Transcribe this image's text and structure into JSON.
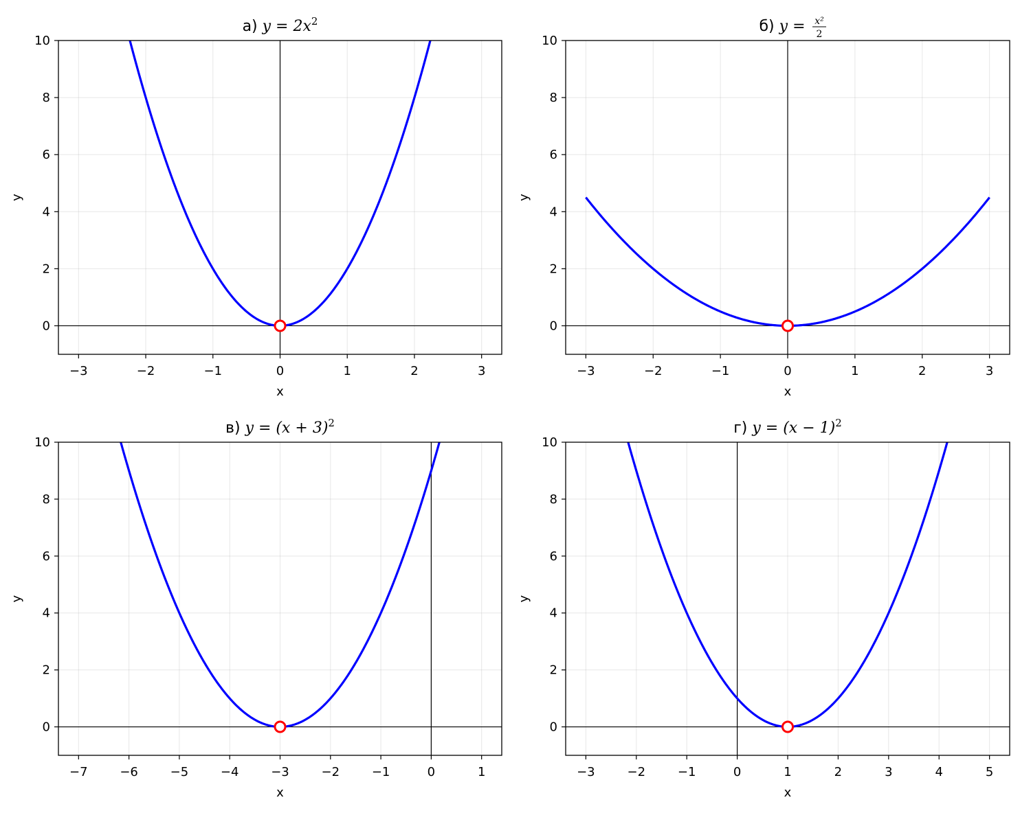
{
  "chart_data": [
    {
      "type": "line",
      "title": {
        "prefix": "а)",
        "formula": "y = 2x",
        "sup": "2"
      },
      "xlabel": "x",
      "ylabel": "y",
      "xlim": [
        -3.3,
        3.3
      ],
      "ylim": [
        -1,
        10
      ],
      "xticks": [
        -3,
        -2,
        -1,
        0,
        1,
        2,
        3
      ],
      "xtick_labels": [
        "−3",
        "−2",
        "−1",
        "0",
        "1",
        "2",
        "3"
      ],
      "yticks": [
        0,
        2,
        4,
        6,
        8,
        10
      ],
      "ytick_labels": [
        "0",
        "2",
        "4",
        "6",
        "8",
        "10"
      ],
      "grid": true,
      "series": [
        {
          "function": "2*x^2",
          "a": 2,
          "h": 0,
          "x_range": [
            -3,
            3
          ],
          "color": "#0000ff"
        }
      ],
      "vertex": [
        0,
        0
      ],
      "vertex_color": "#ff0000"
    },
    {
      "type": "line",
      "title": {
        "prefix": "б)",
        "formula": "y = ",
        "frac_num": "x²",
        "frac_den": "2"
      },
      "xlabel": "x",
      "ylabel": "y",
      "xlim": [
        -3.3,
        3.3
      ],
      "ylim": [
        -1,
        10
      ],
      "xticks": [
        -3,
        -2,
        -1,
        0,
        1,
        2,
        3
      ],
      "xtick_labels": [
        "−3",
        "−2",
        "−1",
        "0",
        "1",
        "2",
        "3"
      ],
      "yticks": [
        0,
        2,
        4,
        6,
        8,
        10
      ],
      "ytick_labels": [
        "0",
        "2",
        "4",
        "6",
        "8",
        "10"
      ],
      "grid": true,
      "series": [
        {
          "function": "x^2/2",
          "a": 0.5,
          "h": 0,
          "x_range": [
            -3,
            3
          ],
          "color": "#0000ff"
        }
      ],
      "vertex": [
        0,
        0
      ],
      "vertex_color": "#ff0000"
    },
    {
      "type": "line",
      "title": {
        "prefix": "в)",
        "formula": "y = (x + 3)",
        "sup": "2"
      },
      "xlabel": "x",
      "ylabel": "y",
      "xlim": [
        -7.4,
        1.4
      ],
      "ylim": [
        -1,
        10
      ],
      "xticks": [
        -7,
        -6,
        -5,
        -4,
        -3,
        -2,
        -1,
        0,
        1
      ],
      "xtick_labels": [
        "−7",
        "−6",
        "−5",
        "−4",
        "−3",
        "−2",
        "−1",
        "0",
        "1"
      ],
      "yticks": [
        0,
        2,
        4,
        6,
        8,
        10
      ],
      "ytick_labels": [
        "0",
        "2",
        "4",
        "6",
        "8",
        "10"
      ],
      "grid": true,
      "series": [
        {
          "function": "(x+3)^2",
          "a": 1,
          "h": -3,
          "x_range": [
            -7,
            1
          ],
          "color": "#0000ff"
        }
      ],
      "vertex": [
        -3,
        0
      ],
      "vertex_color": "#ff0000"
    },
    {
      "type": "line",
      "title": {
        "prefix": "г)",
        "formula": "y = (x − 1)",
        "sup": "2"
      },
      "xlabel": "x",
      "ylabel": "y",
      "xlim": [
        -3.4,
        5.4
      ],
      "ylim": [
        -1,
        10
      ],
      "xticks": [
        -3,
        -2,
        -1,
        0,
        1,
        2,
        3,
        4,
        5
      ],
      "xtick_labels": [
        "−3",
        "−2",
        "−1",
        "0",
        "1",
        "2",
        "3",
        "4",
        "5"
      ],
      "yticks": [
        0,
        2,
        4,
        6,
        8,
        10
      ],
      "ytick_labels": [
        "0",
        "2",
        "4",
        "6",
        "8",
        "10"
      ],
      "grid": true,
      "series": [
        {
          "function": "(x-1)^2",
          "a": 1,
          "h": 1,
          "x_range": [
            -3,
            5
          ],
          "color": "#0000ff"
        }
      ],
      "vertex": [
        1,
        0
      ],
      "vertex_color": "#ff0000"
    }
  ]
}
